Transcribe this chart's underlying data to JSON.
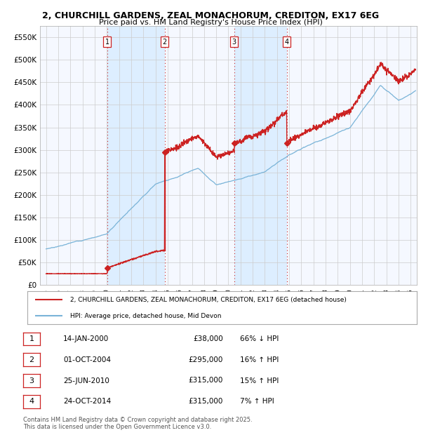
{
  "title_line1": "2, CHURCHILL GARDENS, ZEAL MONACHORUM, CREDITON, EX17 6EG",
  "title_line2": "Price paid vs. HM Land Registry's House Price Index (HPI)",
  "ylim": [
    0,
    575000
  ],
  "yticks": [
    0,
    50000,
    100000,
    150000,
    200000,
    250000,
    300000,
    350000,
    400000,
    450000,
    500000,
    550000
  ],
  "ytick_labels": [
    "£0",
    "£50K",
    "£100K",
    "£150K",
    "£200K",
    "£250K",
    "£300K",
    "£350K",
    "£400K",
    "£450K",
    "£500K",
    "£550K"
  ],
  "xlim_start": 1994.5,
  "xlim_end": 2025.5,
  "xticks": [
    1995,
    1996,
    1997,
    1998,
    1999,
    2000,
    2001,
    2002,
    2003,
    2004,
    2005,
    2006,
    2007,
    2008,
    2009,
    2010,
    2011,
    2012,
    2013,
    2014,
    2015,
    2016,
    2017,
    2018,
    2019,
    2020,
    2021,
    2022,
    2023,
    2024,
    2025
  ],
  "hpi_color": "#7ab4d8",
  "price_color": "#cc2222",
  "vline_color": "#cc2222",
  "grid_color": "#cccccc",
  "bg_color": "#f5f8ff",
  "band_color": "#ddeeff",
  "legend_label_red": "2, CHURCHILL GARDENS, ZEAL MONACHORUM, CREDITON, EX17 6EG (detached house)",
  "legend_label_blue": "HPI: Average price, detached house, Mid Devon",
  "transactions": [
    {
      "num": 1,
      "date": "14-JAN-2000",
      "price": 38000,
      "pct": "66%",
      "dir": "↓",
      "year": 2000.04
    },
    {
      "num": 2,
      "date": "01-OCT-2004",
      "price": 295000,
      "pct": "16%",
      "dir": "↑",
      "year": 2004.75
    },
    {
      "num": 3,
      "date": "25-JUN-2010",
      "price": 315000,
      "pct": "15%",
      "dir": "↑",
      "year": 2010.48
    },
    {
      "num": 4,
      "date": "24-OCT-2014",
      "price": 315000,
      "pct": "7%",
      "dir": "↑",
      "year": 2014.81
    }
  ],
  "footer_line1": "Contains HM Land Registry data © Crown copyright and database right 2025.",
  "footer_line2": "This data is licensed under the Open Government Licence v3.0."
}
